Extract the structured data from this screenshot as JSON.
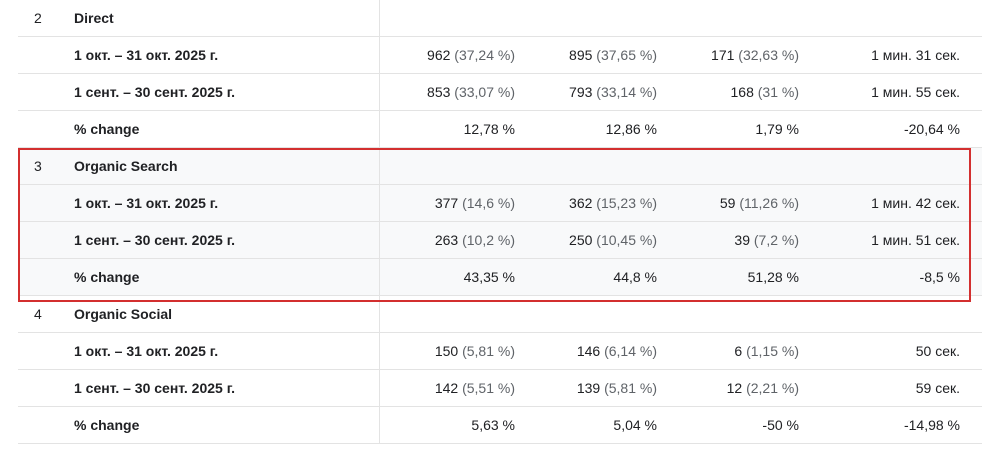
{
  "groups": [
    {
      "rank": "2",
      "channel": "Direct",
      "rows": [
        {
          "period": "1 окт. – 31 окт. 2025 г.",
          "m1": "962",
          "m1_share": "(37,24 %)",
          "m2": "895",
          "m2_share": "(37,65 %)",
          "m3": "171",
          "m3_share": "(32,63 %)",
          "m4": "1 мин. 31 сек."
        },
        {
          "period": "1 сент. – 30 сент. 2025 г.",
          "m1": "853",
          "m1_share": "(33,07 %)",
          "m2": "793",
          "m2_share": "(33,14 %)",
          "m3": "168",
          "m3_share": "(31 %)",
          "m4": "1 мин. 55 сек."
        },
        {
          "period": "% change",
          "m1": "12,78 %",
          "m1_share": "",
          "m2": "12,86 %",
          "m2_share": "",
          "m3": "1,79 %",
          "m3_share": "",
          "m4": "-20,64 %"
        }
      ]
    },
    {
      "rank": "3",
      "channel": "Organic Search",
      "rows": [
        {
          "period": "1 окт. – 31 окт. 2025 г.",
          "m1": "377",
          "m1_share": "(14,6 %)",
          "m2": "362",
          "m2_share": "(15,23 %)",
          "m3": "59",
          "m3_share": "(11,26 %)",
          "m4": "1 мин. 42 сек."
        },
        {
          "period": "1 сент. – 30 сент. 2025 г.",
          "m1": "263",
          "m1_share": "(10,2 %)",
          "m2": "250",
          "m2_share": "(10,45 %)",
          "m3": "39",
          "m3_share": "(7,2 %)",
          "m4": "1 мин. 51 сек."
        },
        {
          "period": "% change",
          "m1": "43,35 %",
          "m1_share": "",
          "m2": "44,8 %",
          "m2_share": "",
          "m3": "51,28 %",
          "m3_share": "",
          "m4": "-8,5 %"
        }
      ]
    },
    {
      "rank": "4",
      "channel": "Organic Social",
      "rows": [
        {
          "period": "1 окт. – 31 окт. 2025 г.",
          "m1": "150",
          "m1_share": "(5,81 %)",
          "m2": "146",
          "m2_share": "(6,14 %)",
          "m3": "6",
          "m3_share": "(1,15 %)",
          "m4": "50 сек."
        },
        {
          "period": "1 сент. – 30 сент. 2025 г.",
          "m1": "142",
          "m1_share": "(5,51 %)",
          "m2": "139",
          "m2_share": "(5,81 %)",
          "m3": "12",
          "m3_share": "(2,21 %)",
          "m4": "59 сек."
        },
        {
          "period": "% change",
          "m1": "5,63 %",
          "m1_share": "",
          "m2": "5,04 %",
          "m2_share": "",
          "m3": "-50 %",
          "m3_share": "",
          "m4": "-14,98 %"
        }
      ]
    }
  ],
  "highlight_color": "#d32f2f"
}
